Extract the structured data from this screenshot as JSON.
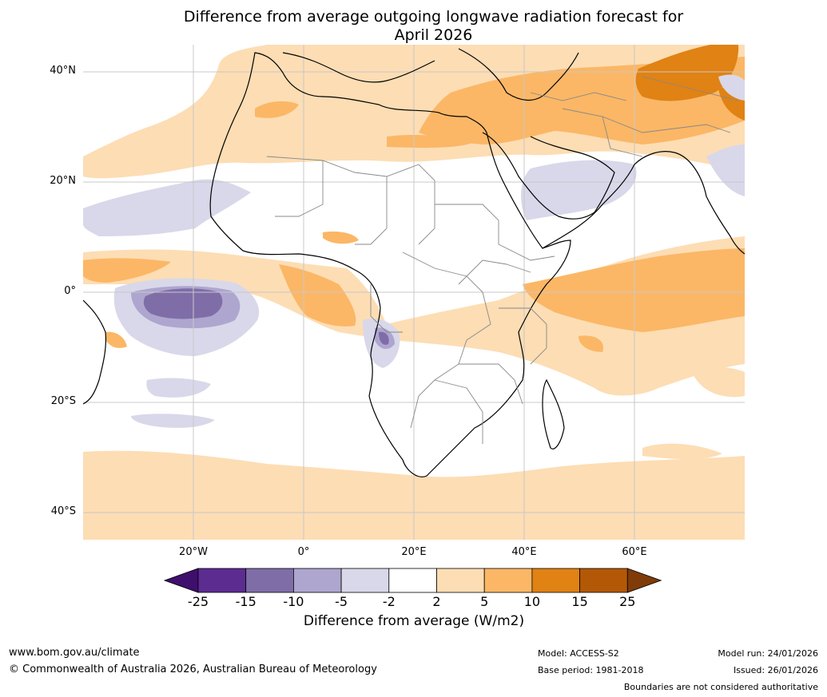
{
  "title_line1": "Difference from average outgoing longwave radiation forecast for",
  "title_line2": "April 2026",
  "lat_labels": [
    "40°N",
    "20°N",
    "0°",
    "20°S",
    "40°S"
  ],
  "lon_labels": [
    "20°W",
    "0°",
    "20°E",
    "40°E",
    "60°E"
  ],
  "colorbar": {
    "ticks": [
      "-25",
      "-15",
      "-10",
      "-5",
      "-2",
      "2",
      "5",
      "10",
      "15",
      "25"
    ],
    "colors": [
      "#3f0f6e",
      "#5c2c91",
      "#7f6da8",
      "#aea6cf",
      "#d8d8ea",
      "#ffffff",
      "#fdddb4",
      "#fbb766",
      "#e08214",
      "#b35806",
      "#7f3b08"
    ],
    "label": "Difference from average (W/m2)"
  },
  "footer": {
    "website": "www.bom.gov.au/climate",
    "copyright": "© Commonwealth of Australia 2026, Australian Bureau of Meteorology",
    "model": "Model: ACCESS-S2",
    "base_period": "Base period: 1981-2018",
    "model_run": "Model run: 24/01/2026",
    "issued": "Issued: 26/01/2026",
    "disclaimer": "Boundaries are not considered authoritative"
  },
  "map_fill_classes": {
    "light_orange": "2 to 5",
    "orange": "5 to 10",
    "dark_orange": "10 to 15",
    "light_purple": "-5 to -2",
    "mid_purple": "-10 to -5",
    "purple": "-15 to -10"
  }
}
